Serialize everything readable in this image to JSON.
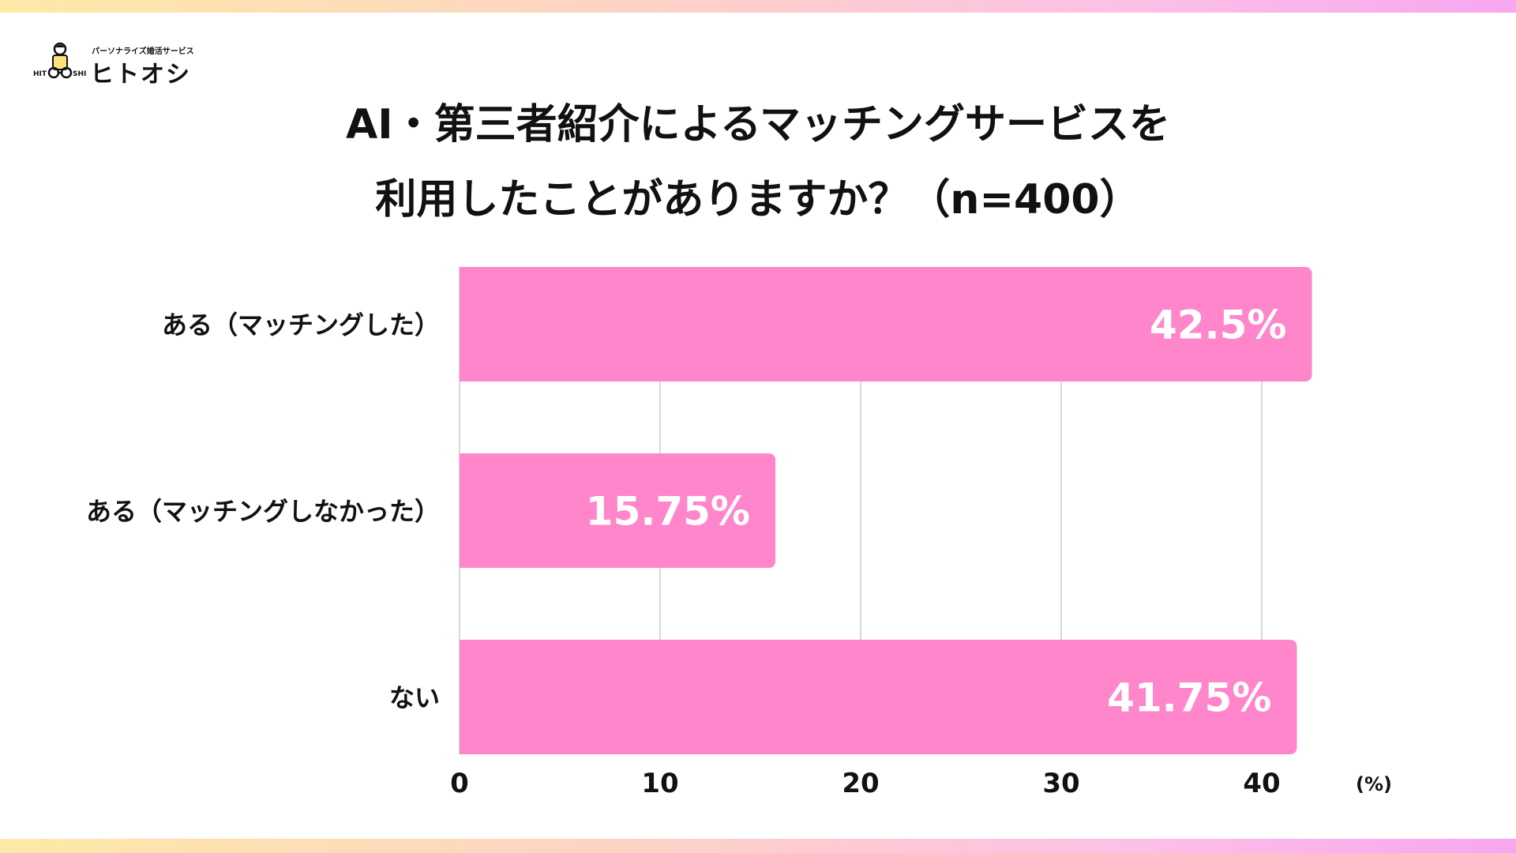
{
  "logo": {
    "tagline": "パーソナライズ婚活サービス",
    "name": "ヒトオシ",
    "icon": "person-with-glasses-icon"
  },
  "title": {
    "line1": "AI・第三者紹介によるマッチングサービスを",
    "line2": "利用したことがありますか？（n=400）"
  },
  "colors": {
    "bar": "#ff86cb",
    "grid": "#cccccc",
    "band_start": "#fde9a6",
    "band_end": "#f7a6f0"
  },
  "chart_data": {
    "type": "bar",
    "orientation": "horizontal",
    "categories": [
      "ある（マッチングした）",
      "ある（マッチングしなかった）",
      "ない"
    ],
    "values": [
      42.5,
      15.75,
      41.75
    ],
    "value_labels": [
      "42.5%",
      "15.75%",
      "41.75%"
    ],
    "xlim": [
      0,
      42.5
    ],
    "xticks": [
      0,
      10,
      20,
      30,
      40
    ],
    "xtick_labels": [
      "0",
      "10",
      "20",
      "30",
      "40"
    ],
    "unit": "(%)",
    "grid": true
  }
}
